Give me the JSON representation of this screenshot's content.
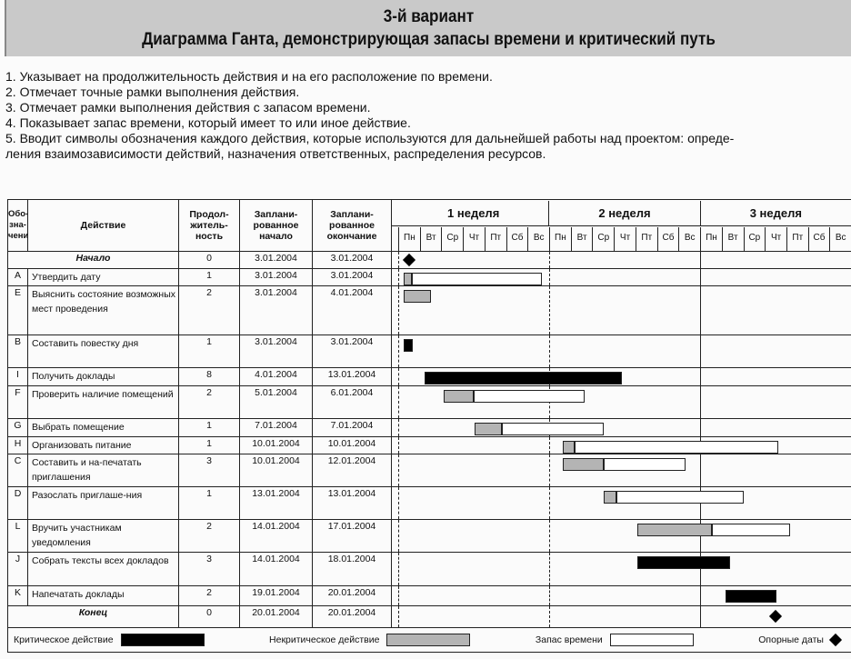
{
  "header": {
    "title": "3-й вариант",
    "subtitle": "Диаграмма Ганта, демонстрирующая запасы времени и критический путь"
  },
  "notes": [
    "1. Указывает на продолжительность действия и на его расположение по времени.",
    "2. Отмечает точные рамки выполнения действия.",
    "3. Отмечает рамки выполнения действия с запасом времени.",
    "4. Показывает запас времени, который имеет то или иное действие.",
    "5. Вводит символы обозначения каждого действия, которые используются для дальнейшей работы над проектом: опреде-",
    "ления взаимозависимости действий, назначения ответственных, распределения ресурсов."
  ],
  "table": {
    "columns": [
      "Обо-зна-чение",
      "Действие",
      "Продол-житель-ность",
      "Заплани-рованное начало",
      "Заплани-рованное окончание"
    ],
    "weeks": [
      "1 неделя",
      "2 неделя",
      "3 неделя"
    ],
    "days": [
      "Пн",
      "Вт",
      "Ср",
      "Чт",
      "Пт",
      "Сб",
      "Вс"
    ],
    "rows": [
      {
        "code": "",
        "action": "Начало",
        "milestone": true,
        "duration": "0",
        "start": "3.01.2004",
        "end": "3.01.2004",
        "bar": {
          "kind": "milestone",
          "at": 0.5
        }
      },
      {
        "code": "A",
        "action": "Утвердить дату",
        "duration": "1",
        "start": "3.01.2004",
        "end": "3.01.2004",
        "bar": {
          "kind": "noncritical",
          "start": 0.25,
          "end": 0.63,
          "slack_end": 6.67
        }
      },
      {
        "code": "E",
        "action": "Выяснить состояние возможных мест проведения",
        "duration": "2",
        "start": "3.01.2004",
        "end": "4.01.2004",
        "bar": {
          "kind": "noncritical",
          "start": 0.25,
          "end": 1.52
        }
      },
      {
        "code": "B",
        "action": "Составить повестку дня",
        "duration": "1",
        "start": "3.01.2004",
        "end": "3.01.2004",
        "bar": {
          "kind": "critical",
          "start": 0.25,
          "end": 0.68
        }
      },
      {
        "code": "I",
        "action": "Получить доклады",
        "duration": "8",
        "start": "4.01.2004",
        "end": "13.01.2004",
        "bar": {
          "kind": "critical",
          "start": 1.22,
          "end": 10.38
        }
      },
      {
        "code": "F",
        "action": "Проверить наличие помещений",
        "duration": "2",
        "start": "5.01.2004",
        "end": "6.01.2004",
        "bar": {
          "kind": "noncritical",
          "start": 2.11,
          "end": 3.5,
          "slack_end": 8.65
        }
      },
      {
        "code": "G",
        "action": "Выбрать помещение",
        "duration": "1",
        "start": "7.01.2004",
        "end": "7.01.2004",
        "bar": {
          "kind": "noncritical",
          "start": 3.54,
          "end": 4.81,
          "slack_end": 9.54
        }
      },
      {
        "code": "H",
        "action": "Организовать питание",
        "duration": "1",
        "start": "10.01.2004",
        "end": "10.01.2004",
        "bar": {
          "kind": "noncritical",
          "start": 7.64,
          "end": 8.19,
          "slack_end": 17.64
        }
      },
      {
        "code": "C",
        "action": "Составить и на-печатать приглашения",
        "duration": "3",
        "start": "10.01.2004",
        "end": "12.01.2004",
        "bar": {
          "kind": "noncritical",
          "start": 7.64,
          "end": 9.54,
          "slack_end": 13.33
        }
      },
      {
        "code": "D",
        "action": "Разослать приглаше-ния",
        "duration": "1",
        "start": "13.01.2004",
        "end": "13.01.2004",
        "bar": {
          "kind": "noncritical",
          "start": 9.54,
          "end": 10.13,
          "slack_end": 16.03
        }
      },
      {
        "code": "L",
        "action": "Вручить участникам уведомления",
        "duration": "2",
        "start": "14.01.2004",
        "end": "17.01.2004",
        "bar": {
          "kind": "noncritical",
          "start": 11.1,
          "end": 14.56,
          "slack_end": 18.19
        }
      },
      {
        "code": "J",
        "action": "Собрать тексты всех докладов",
        "duration": "3",
        "start": "14.01.2004",
        "end": "18.01.2004",
        "bar": {
          "kind": "critical",
          "start": 11.1,
          "end": 15.4
        }
      },
      {
        "code": "K",
        "action": "Напечатать доклады",
        "duration": "2",
        "start": "19.01.2004",
        "end": "20.01.2004",
        "bar": {
          "kind": "critical",
          "start": 15.19,
          "end": 17.55
        }
      },
      {
        "code": "",
        "action": "Конец",
        "milestone": true,
        "duration": "0",
        "start": "20.01.2004",
        "end": "20.01.2004",
        "bar": {
          "kind": "milestone",
          "at": 17.5
        }
      }
    ]
  },
  "legend": {
    "critical": "Критическое действие",
    "noncritical": "Некритическое действие",
    "slack": "Запас времени",
    "milestones": "Опорные даты"
  },
  "colors": {
    "critical": "#000000",
    "noncritical": "#b4b4b4",
    "slack": "#ffffff",
    "header_bg": "#c9c9c9"
  }
}
